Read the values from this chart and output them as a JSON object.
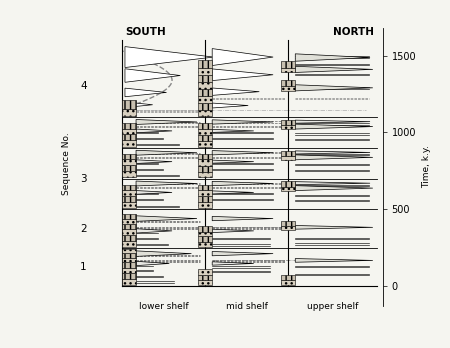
{
  "title_south": "SOUTH",
  "title_north": "NORTH",
  "xlabel_lower": "lower shelf",
  "xlabel_mid": "mid shelf",
  "xlabel_upper": "upper shelf",
  "ylabel_left": "Sequence No.",
  "ylabel_right": "Time, k.y.",
  "ylim": [
    0,
    1600
  ],
  "yticks_right": [
    0,
    500,
    1000,
    1500
  ],
  "sequence_labels": [
    1,
    2,
    3,
    4
  ],
  "bg_color": "#f5f5f0",
  "line_color": "#000000"
}
